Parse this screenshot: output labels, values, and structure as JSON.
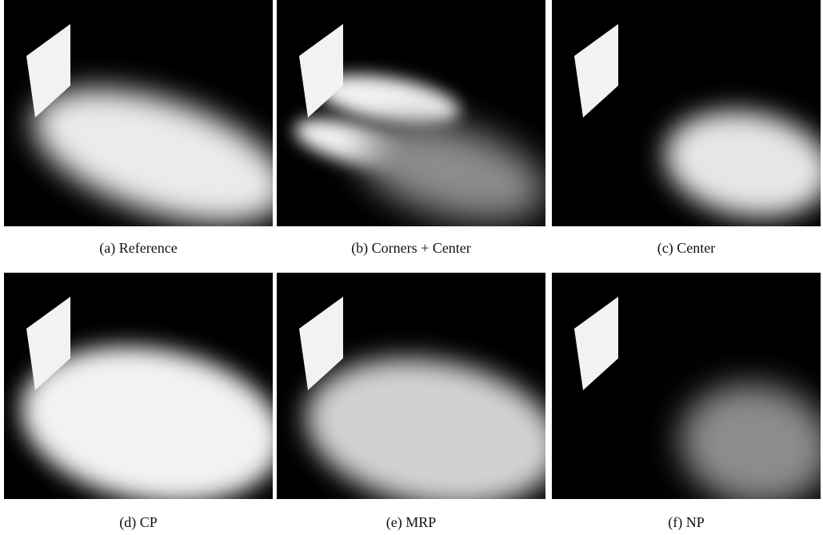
{
  "panels": [
    {
      "caption": "(a) Reference"
    },
    {
      "caption": "(b) Corners + Center"
    },
    {
      "caption": "(c) Center"
    },
    {
      "caption": "(d) CP"
    },
    {
      "caption": "(e) MRP"
    },
    {
      "caption": "(f) NP"
    }
  ]
}
